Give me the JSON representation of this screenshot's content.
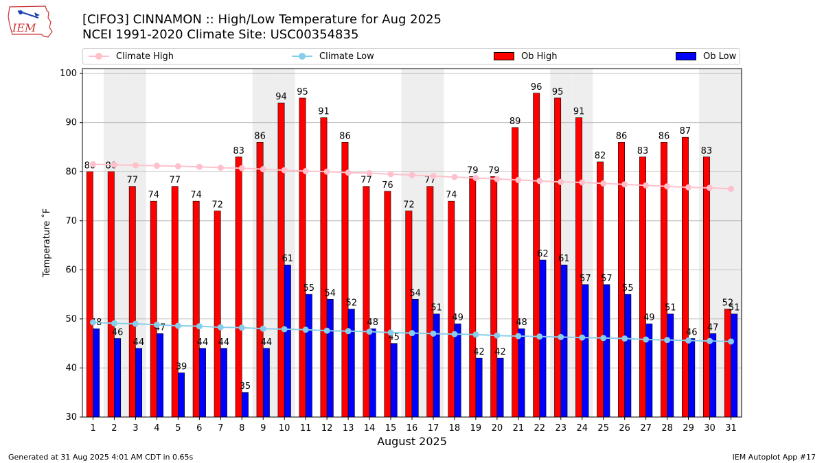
{
  "header": {
    "logo_text": "IEM",
    "title_line1": "[CIFO3] CINNAMON :: High/Low Temperature for Aug 2025",
    "title_line2": "NCEI 1991-2020 Climate Site: USC00354835"
  },
  "colors": {
    "climate_high": "#ffc0cb",
    "climate_low": "#87ceeb",
    "ob_high": "#ff0000",
    "ob_low": "#0000ff",
    "weekend_band": "#eeeeee",
    "grid": "#b0b0b0"
  },
  "legend": {
    "location": "top",
    "climate_high": "Climate High",
    "climate_low": "Climate Low",
    "ob_high": "Ob High",
    "ob_low": "Ob Low"
  },
  "footer": {
    "left": "Generated at 31 Aug 2025 4:01 AM CDT in 0.65s",
    "right": "IEM Autoplot App #17"
  },
  "chart_data": {
    "type": "bar",
    "xlabel": "August 2025",
    "ylabel": "Temperature ˚F",
    "ylim": [
      30,
      101
    ],
    "yticks": [
      30,
      40,
      50,
      60,
      70,
      80,
      90,
      100
    ],
    "grid": "horizontal",
    "shaded_days": [
      2,
      3,
      9,
      10,
      16,
      17,
      23,
      24,
      30,
      31
    ],
    "categories": [
      1,
      2,
      3,
      4,
      5,
      6,
      7,
      8,
      9,
      10,
      11,
      12,
      13,
      14,
      15,
      16,
      17,
      18,
      19,
      20,
      21,
      22,
      23,
      24,
      25,
      26,
      27,
      28,
      29,
      30,
      31
    ],
    "series": [
      {
        "name": "Ob High",
        "kind": "bar",
        "values": [
          80,
          80,
          77,
          74,
          77,
          74,
          72,
          83,
          86,
          94,
          95,
          91,
          86,
          77,
          76,
          72,
          77,
          74,
          79,
          79,
          89,
          96,
          95,
          91,
          82,
          86,
          83,
          86,
          87,
          83,
          52
        ]
      },
      {
        "name": "Ob Low",
        "kind": "bar",
        "values": [
          48,
          46,
          44,
          47,
          39,
          44,
          44,
          35,
          44,
          61,
          55,
          54,
          52,
          48,
          45,
          54,
          51,
          49,
          42,
          42,
          48,
          62,
          61,
          57,
          57,
          55,
          49,
          51,
          46,
          47,
          51
        ]
      },
      {
        "name": "Climate High",
        "kind": "line",
        "values": [
          81.5,
          81.4,
          81.3,
          81.2,
          81.1,
          81.0,
          80.8,
          80.7,
          80.5,
          80.3,
          80.1,
          80.0,
          79.8,
          79.7,
          79.5,
          79.3,
          79.1,
          78.9,
          78.7,
          78.5,
          78.3,
          78.1,
          77.9,
          77.8,
          77.6,
          77.4,
          77.2,
          77.0,
          76.8,
          76.7,
          76.5
        ]
      },
      {
        "name": "Climate Low",
        "kind": "line",
        "values": [
          49.3,
          49.1,
          49.0,
          48.8,
          48.6,
          48.5,
          48.3,
          48.2,
          48.0,
          47.9,
          47.8,
          47.6,
          47.5,
          47.4,
          47.2,
          47.1,
          47.0,
          46.9,
          46.8,
          46.6,
          46.5,
          46.4,
          46.3,
          46.2,
          46.1,
          46.0,
          45.8,
          45.7,
          45.6,
          45.5,
          45.4
        ]
      }
    ]
  }
}
